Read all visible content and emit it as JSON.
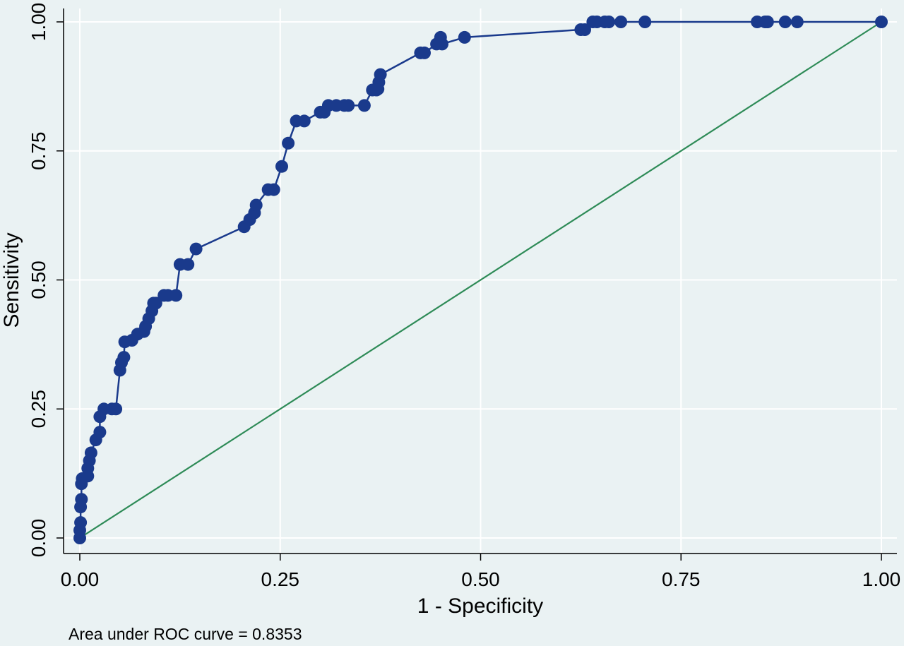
{
  "chart_data": {
    "type": "line",
    "xlabel": "1 - Specificity",
    "ylabel": "Sensitivity",
    "note": "Area under ROC curve = 0.8353",
    "xlim": [
      0,
      1
    ],
    "ylim": [
      0,
      1
    ],
    "x_ticks": [
      "0.00",
      "0.25",
      "0.50",
      "0.75",
      "1.00"
    ],
    "y_ticks": [
      "0.00",
      "0.25",
      "0.50",
      "0.75",
      "1.00"
    ],
    "grid": true,
    "series": [
      {
        "color": "#1a3a8c",
        "markers": true,
        "points": [
          [
            0.0,
            0.0
          ],
          [
            0.0,
            0.015
          ],
          [
            0.001,
            0.03
          ],
          [
            0.001,
            0.06
          ],
          [
            0.002,
            0.075
          ],
          [
            0.002,
            0.105
          ],
          [
            0.003,
            0.115
          ],
          [
            0.01,
            0.12
          ],
          [
            0.01,
            0.135
          ],
          [
            0.012,
            0.15
          ],
          [
            0.014,
            0.165
          ],
          [
            0.02,
            0.19
          ],
          [
            0.025,
            0.205
          ],
          [
            0.025,
            0.235
          ],
          [
            0.03,
            0.25
          ],
          [
            0.04,
            0.25
          ],
          [
            0.045,
            0.25
          ],
          [
            0.05,
            0.325
          ],
          [
            0.052,
            0.34
          ],
          [
            0.055,
            0.35
          ],
          [
            0.056,
            0.38
          ],
          [
            0.065,
            0.383
          ],
          [
            0.072,
            0.395
          ],
          [
            0.08,
            0.4
          ],
          [
            0.082,
            0.41
          ],
          [
            0.086,
            0.425
          ],
          [
            0.09,
            0.44
          ],
          [
            0.092,
            0.455
          ],
          [
            0.095,
            0.455
          ],
          [
            0.105,
            0.47
          ],
          [
            0.11,
            0.47
          ],
          [
            0.12,
            0.47
          ],
          [
            0.125,
            0.53
          ],
          [
            0.135,
            0.53
          ],
          [
            0.145,
            0.56
          ],
          [
            0.205,
            0.603
          ],
          [
            0.212,
            0.617
          ],
          [
            0.218,
            0.63
          ],
          [
            0.22,
            0.645
          ],
          [
            0.235,
            0.675
          ],
          [
            0.242,
            0.675
          ],
          [
            0.252,
            0.72
          ],
          [
            0.26,
            0.765
          ],
          [
            0.27,
            0.808
          ],
          [
            0.28,
            0.808
          ],
          [
            0.3,
            0.825
          ],
          [
            0.305,
            0.825
          ],
          [
            0.31,
            0.838
          ],
          [
            0.32,
            0.838
          ],
          [
            0.33,
            0.838
          ],
          [
            0.335,
            0.838
          ],
          [
            0.355,
            0.838
          ],
          [
            0.365,
            0.868
          ],
          [
            0.37,
            0.868
          ],
          [
            0.372,
            0.87
          ],
          [
            0.373,
            0.883
          ],
          [
            0.375,
            0.898
          ],
          [
            0.425,
            0.94
          ],
          [
            0.43,
            0.94
          ],
          [
            0.445,
            0.957
          ],
          [
            0.45,
            0.97
          ],
          [
            0.452,
            0.957
          ],
          [
            0.48,
            0.97
          ],
          [
            0.625,
            0.985
          ],
          [
            0.63,
            0.985
          ],
          [
            0.64,
            1.0
          ],
          [
            0.645,
            1.0
          ],
          [
            0.655,
            1.0
          ],
          [
            0.66,
            1.0
          ],
          [
            0.675,
            1.0
          ],
          [
            0.705,
            1.0
          ],
          [
            0.845,
            1.0
          ],
          [
            0.855,
            1.0
          ],
          [
            0.858,
            1.0
          ],
          [
            0.88,
            1.0
          ],
          [
            0.895,
            1.0
          ],
          [
            1.0,
            1.0
          ]
        ]
      },
      {
        "color": "#2e8b57",
        "markers": false,
        "points": [
          [
            0,
            0
          ],
          [
            1,
            1
          ]
        ]
      }
    ]
  }
}
